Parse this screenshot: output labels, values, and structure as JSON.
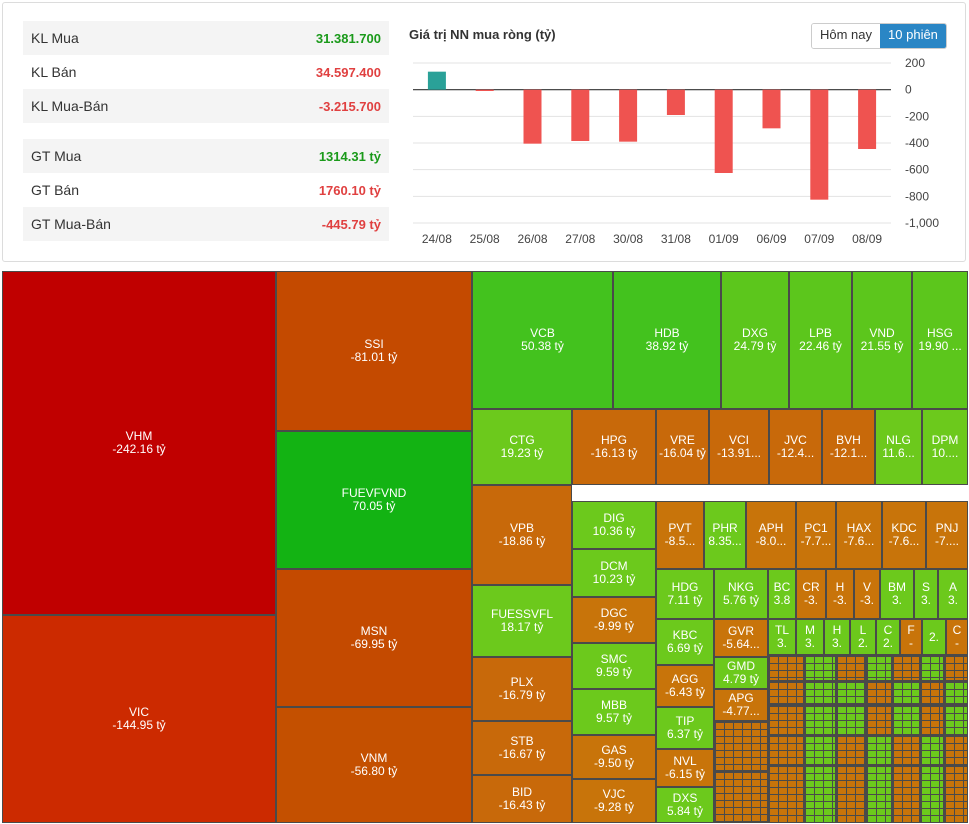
{
  "stats": [
    {
      "label": "KL Mua",
      "value": "31.381.700",
      "color": "#1a9a1a"
    },
    {
      "label": "KL Bán",
      "value": "34.597.400",
      "color": "#e04040"
    },
    {
      "label": "KL Mua-Bán",
      "value": "-3.215.700",
      "color": "#e04040"
    },
    {
      "label": "GT Mua",
      "value": "1314.31 tỷ",
      "color": "#1a9a1a"
    },
    {
      "label": "GT Bán",
      "value": "1760.10 tỷ",
      "color": "#e04040"
    },
    {
      "label": "GT Mua-Bán",
      "value": "-445.79 tỷ",
      "color": "#e04040"
    }
  ],
  "toggle": {
    "today": "Hôm nay",
    "ten": "10 phiên"
  },
  "colors": {
    "positive": "#2aa198",
    "negative": "#ef5350"
  },
  "chart_data": [
    {
      "type": "bar",
      "title": "Giá trị NN mua ròng (tỷ)",
      "categories": [
        "24/08",
        "25/08",
        "26/08",
        "27/08",
        "30/08",
        "31/08",
        "01/09",
        "06/09",
        "07/09",
        "08/09"
      ],
      "values": [
        135,
        -10,
        -405,
        -385,
        -390,
        -190,
        -625,
        -290,
        -825,
        -445
      ],
      "ylim": [
        -1000,
        200
      ],
      "yticks": [
        200,
        0,
        -200,
        -400,
        -600,
        -800,
        -1000
      ],
      "ytick_labels": [
        "200",
        "0",
        "-200",
        "-400",
        "-600",
        "-800",
        "-1,000"
      ],
      "grid": true
    },
    {
      "type": "heatmap",
      "title": "treemap",
      "tiles": [
        {
          "sym": "VHM",
          "val": "-242.16 tỷ",
          "c": "#c00000"
        },
        {
          "sym": "VIC",
          "val": "-144.95 tỷ",
          "c": "#cc2a00"
        },
        {
          "sym": "SSI",
          "val": "-81.01 tỷ",
          "c": "#c44a00"
        },
        {
          "sym": "FUEVFVND",
          "val": "70.05 tỷ",
          "c": "#13b313"
        },
        {
          "sym": "MSN",
          "val": "-69.95 tỷ",
          "c": "#c44a00"
        },
        {
          "sym": "VNM",
          "val": "-56.80 tỷ",
          "c": "#c45000"
        },
        {
          "sym": "VCB",
          "val": "50.38 tỷ",
          "c": "#43c21e"
        },
        {
          "sym": "HDB",
          "val": "38.92 tỷ",
          "c": "#43c21e"
        },
        {
          "sym": "DXG",
          "val": "24.79 tỷ",
          "c": "#5cc61c"
        },
        {
          "sym": "LPB",
          "val": "22.46 tỷ",
          "c": "#5cc61c"
        },
        {
          "sym": "VND",
          "val": "21.55 tỷ",
          "c": "#5cc61c"
        },
        {
          "sym": "HSG",
          "val": "19.90 ...",
          "c": "#5cc61c"
        },
        {
          "sym": "CTG",
          "val": "19.23 tỷ",
          "c": "#6cc91c"
        },
        {
          "sym": "HPG",
          "val": "-16.13 tỷ",
          "c": "#c8690a"
        },
        {
          "sym": "VRE",
          "val": "-16.04 tỷ",
          "c": "#c8690a"
        },
        {
          "sym": "VCI",
          "val": "-13.91...",
          "c": "#c8690a"
        },
        {
          "sym": "JVC",
          "val": "-12.4...",
          "c": "#c8690a"
        },
        {
          "sym": "BVH",
          "val": "-12.1...",
          "c": "#c8690a"
        },
        {
          "sym": "NLG",
          "val": "11.6...",
          "c": "#6cc91c"
        },
        {
          "sym": "DPM",
          "val": "10....",
          "c": "#6cc91c"
        },
        {
          "sym": "VPB",
          "val": "-18.86 tỷ",
          "c": "#c8690a"
        },
        {
          "sym": "DIG",
          "val": "10.36 tỷ",
          "c": "#6cc91c"
        },
        {
          "sym": "PVT",
          "val": "-8.5...",
          "c": "#c8740a"
        },
        {
          "sym": "PHR",
          "val": "8.35...",
          "c": "#6cc91c"
        },
        {
          "sym": "APH",
          "val": "-8.0...",
          "c": "#c8740a"
        },
        {
          "sym": "PC1",
          "val": "-7.7...",
          "c": "#c8740a"
        },
        {
          "sym": "HAX",
          "val": "-7.6...",
          "c": "#c8740a"
        },
        {
          "sym": "KDC",
          "val": "-7.6...",
          "c": "#c8740a"
        },
        {
          "sym": "PNJ",
          "val": "-7....",
          "c": "#c8740a"
        },
        {
          "sym": "FUESSVFL",
          "val": "18.17 tỷ",
          "c": "#6cc91c"
        },
        {
          "sym": "DCM",
          "val": "10.23 tỷ",
          "c": "#6cc91c"
        },
        {
          "sym": "HDG",
          "val": "7.11 tỷ",
          "c": "#6cc91c"
        },
        {
          "sym": "NKG",
          "val": "5.76 tỷ",
          "c": "#6cc91c"
        },
        {
          "sym": "BC",
          "val": "3.8",
          "c": "#6cc91c"
        },
        {
          "sym": "CR",
          "val": "-3.",
          "c": "#c8740a"
        },
        {
          "sym": "H",
          "val": "-3.",
          "c": "#c8740a"
        },
        {
          "sym": "V",
          "val": "-3.",
          "c": "#c8740a"
        },
        {
          "sym": "BM",
          "val": "3.",
          "c": "#6cc91c"
        },
        {
          "sym": "S",
          "val": "3.",
          "c": "#6cc91c"
        },
        {
          "sym": "A",
          "val": "3.",
          "c": "#6cc91c"
        },
        {
          "sym": "DGC",
          "val": "-9.99 tỷ",
          "c": "#c8740a"
        },
        {
          "sym": "KBC",
          "val": "6.69 tỷ",
          "c": "#6cc91c"
        },
        {
          "sym": "GVR",
          "val": "-5.64...",
          "c": "#c8740a"
        },
        {
          "sym": "TL",
          "val": "3.",
          "c": "#6cc91c"
        },
        {
          "sym": "M",
          "val": "3.",
          "c": "#6cc91c"
        },
        {
          "sym": "H",
          "val": "3.",
          "c": "#6cc91c"
        },
        {
          "sym": "L",
          "val": "2.",
          "c": "#6cc91c"
        },
        {
          "sym": "C",
          "val": "2.",
          "c": "#6cc91c"
        },
        {
          "sym": "F",
          "val": "-",
          "c": "#c8740a"
        },
        {
          "sym": "",
          "val": "2.",
          "c": "#6cc91c"
        },
        {
          "sym": "C",
          "val": "-",
          "c": "#c8740a"
        },
        {
          "sym": "PLX",
          "val": "-16.79 tỷ",
          "c": "#c8690a"
        },
        {
          "sym": "SMC",
          "val": "9.59 tỷ",
          "c": "#6cc91c"
        },
        {
          "sym": "AGG",
          "val": "-6.43 tỷ",
          "c": "#c8740a"
        },
        {
          "sym": "GMD",
          "val": "4.79 tỷ",
          "c": "#6cc91c"
        },
        {
          "sym": "APG",
          "val": "-4.77...",
          "c": "#c8740a"
        },
        {
          "sym": "STB",
          "val": "-16.67 tỷ",
          "c": "#c8690a"
        },
        {
          "sym": "MBB",
          "val": "9.57 tỷ",
          "c": "#6cc91c"
        },
        {
          "sym": "TIP",
          "val": "6.37 tỷ",
          "c": "#6cc91c"
        },
        {
          "sym": "BID",
          "val": "-16.43 tỷ",
          "c": "#c8690a"
        },
        {
          "sym": "GAS",
          "val": "-9.50 tỷ",
          "c": "#c8740a"
        },
        {
          "sym": "NVL",
          "val": "-6.15 tỷ",
          "c": "#c8740a"
        },
        {
          "sym": "VJC",
          "val": "-9.28 tỷ",
          "c": "#c8740a"
        },
        {
          "sym": "DXS",
          "val": "5.84 tỷ",
          "c": "#6cc91c"
        }
      ]
    }
  ]
}
